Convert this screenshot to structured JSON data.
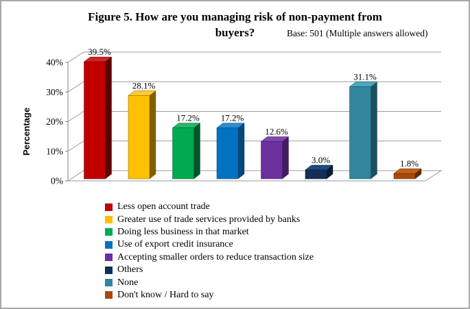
{
  "title": {
    "line1": "Figure 5. How are you managing risk of non-payment from",
    "line2": "buyers?",
    "base_note": "Base: 501 (Multiple answers allowed)"
  },
  "chart_data": {
    "type": "bar",
    "effect": "3d",
    "title": "Figure 5. How are you managing risk of non-payment from buyers?",
    "subtitle": "Base: 501 (Multiple answers allowed)",
    "xlabel": "",
    "ylabel": "Percentage",
    "ylim": [
      0,
      40
    ],
    "ytick_step": 10,
    "ytick_labels": [
      "0%",
      "10%",
      "20%",
      "30%",
      "40%"
    ],
    "grid": true,
    "legend_position": "bottom",
    "categories": [
      "Less open account trade",
      "Greater use of trade services provided by banks",
      "Doing less business in that market",
      "Use of export credit insurance",
      "Accepting smaller orders to reduce transaction size",
      "Others",
      "None",
      "Don't know / Hard to say"
    ],
    "values": [
      39.5,
      28.1,
      17.2,
      17.2,
      12.6,
      3.0,
      31.1,
      1.8
    ],
    "value_labels": [
      "39.5%",
      "28.1%",
      "17.2%",
      "17.2%",
      "12.6%",
      "3.0%",
      "31.1%",
      "1.8%"
    ],
    "colors": [
      {
        "front": "#C00000",
        "top": "#D22222",
        "side": "#5E0000"
      },
      {
        "front": "#FFC000",
        "top": "#FFCC2E",
        "side": "#7F6000"
      },
      {
        "front": "#00AB50",
        "top": "#23B968",
        "side": "#00572A"
      },
      {
        "front": "#0072C0",
        "top": "#2E8BD0",
        "side": "#00477E"
      },
      {
        "front": "#6E2F9E",
        "top": "#8146B3",
        "side": "#431C62"
      },
      {
        "front": "#132E56",
        "top": "#1F4B7E",
        "side": "#0A1A33"
      },
      {
        "front": "#31859C",
        "top": "#4AA8C0",
        "side": "#1D505E"
      },
      {
        "front": "#A6490C",
        "top": "#C45F19",
        "side": "#5F2B07"
      }
    ],
    "grid_color": "#9a9a9a",
    "axis_color": "#808080"
  }
}
